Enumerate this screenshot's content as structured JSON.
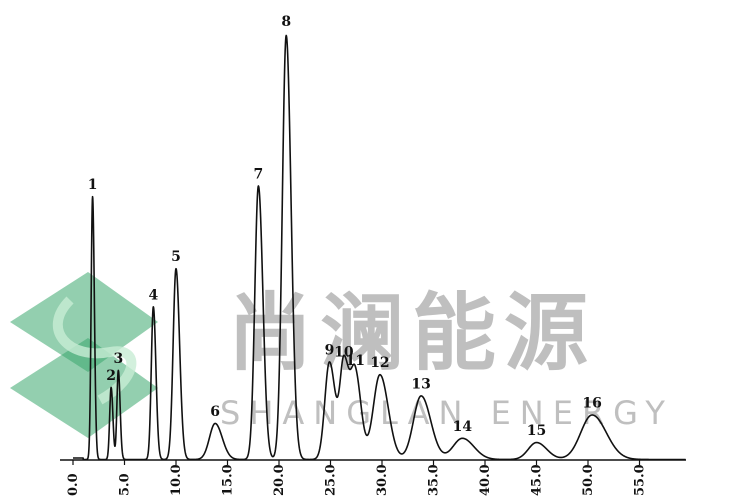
{
  "chart_data": {
    "type": "line",
    "xlim": [
      0,
      60
    ],
    "x_ticks": [
      "0.0",
      "5.0",
      "10.0",
      "15.0",
      "20.0",
      "25.0",
      "30.0",
      "35.0",
      "40.0",
      "45.0",
      "50.0",
      "55.0"
    ],
    "x_tick_values": [
      0,
      5,
      10,
      15,
      20,
      25,
      30,
      35,
      40,
      45,
      50,
      55
    ],
    "grid": false,
    "legend": "none",
    "peaks": [
      {
        "label": "1",
        "x": 1.9,
        "height": 0.62,
        "width": 0.14
      },
      {
        "label": "2",
        "x": 3.7,
        "height": 0.17,
        "width": 0.14
      },
      {
        "label": "3",
        "x": 4.4,
        "height": 0.21,
        "width": 0.14
      },
      {
        "label": "4",
        "x": 7.8,
        "height": 0.36,
        "width": 0.2
      },
      {
        "label": "5",
        "x": 10.0,
        "height": 0.45,
        "width": 0.28
      },
      {
        "label": "6",
        "x": 13.8,
        "height": 0.085,
        "width": 0.55
      },
      {
        "label": "7",
        "x": 18.0,
        "height": 0.645,
        "width": 0.35
      },
      {
        "label": "8",
        "x": 20.7,
        "height": 1.0,
        "width": 0.38
      },
      {
        "label": "9",
        "x": 24.9,
        "height": 0.23,
        "width": 0.45
      },
      {
        "label": "10",
        "x": 26.3,
        "height": 0.225,
        "width": 0.38
      },
      {
        "label": "11",
        "x": 27.4,
        "height": 0.205,
        "width": 0.45
      },
      {
        "label": "12",
        "x": 29.8,
        "height": 0.2,
        "width": 0.65
      },
      {
        "label": "13",
        "x": 33.8,
        "height": 0.15,
        "width": 0.75
      },
      {
        "label": "14",
        "x": 37.8,
        "height": 0.05,
        "width": 0.9
      },
      {
        "label": "15",
        "x": 45.0,
        "height": 0.04,
        "width": 0.8
      },
      {
        "label": "16",
        "x": 50.4,
        "height": 0.105,
        "width": 1.1
      }
    ]
  },
  "watermark": {
    "chinese": "尚澜能源",
    "english": "SHANGLAN ENERGY",
    "logo_colors": [
      "#3aa76d",
      "#8fd0a6"
    ],
    "text_color": "#8c8c8c"
  }
}
